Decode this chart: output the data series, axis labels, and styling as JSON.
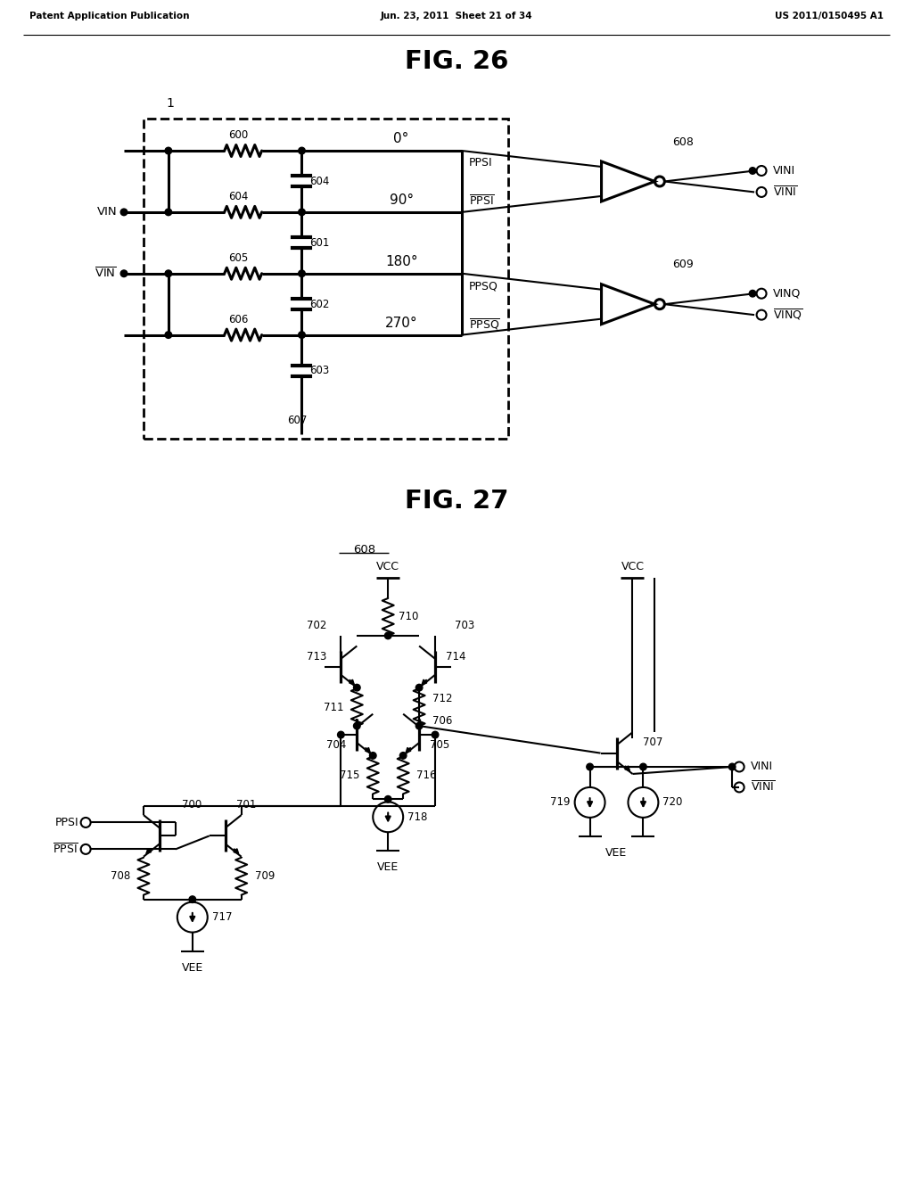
{
  "bg_color": "#ffffff",
  "fig_width": 10.24,
  "fig_height": 13.2,
  "header_left": "Patent Application Publication",
  "header_center": "Jun. 23, 2011  Sheet 21 of 34",
  "header_right": "US 2011/0150495 A1",
  "fig26_title": "FIG. 26",
  "fig27_title": "FIG. 27",
  "lc": "#000000",
  "lw": 1.5,
  "blw": 2.2,
  "dot_r": 0.038
}
